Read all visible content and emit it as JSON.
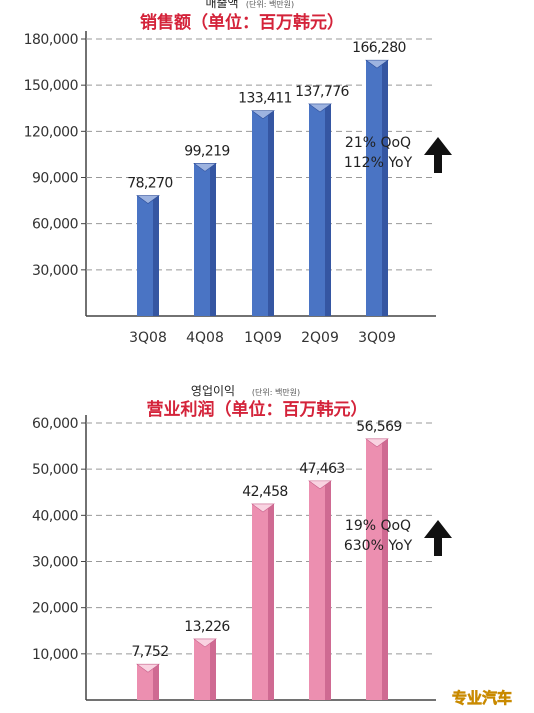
{
  "chart_data": [
    {
      "type": "bar",
      "title_ko": "매출액",
      "unit_ko": "(단위: 백만원)",
      "title_zh": "销售额（单位：百万韩元）",
      "categories": [
        "3Q08",
        "4Q08",
        "1Q09",
        "2Q09",
        "3Q09"
      ],
      "values": [
        78270,
        99219,
        133411,
        137776,
        166280
      ],
      "value_labels": [
        "78,270",
        "99,219",
        "133,411",
        "137,776",
        "166,280"
      ],
      "ylim": [
        0,
        180000
      ],
      "yticks": [
        "30,000",
        "60,000",
        "90,000",
        "120,000",
        "150,000",
        "180,000"
      ],
      "grid": true,
      "annotation": [
        "21% QoQ",
        "112% YoY"
      ],
      "colors": {
        "front": "#4a74c4",
        "side": "#2f4f9a",
        "top": "#9db3e0"
      }
    },
    {
      "type": "bar",
      "title_ko": "영업이익",
      "unit_ko": "(단위: 백만원)",
      "title_zh": "营业利润（单位：百万韩元）",
      "categories": [
        "3Q08",
        "4Q08",
        "1Q09",
        "2Q09",
        "3Q09"
      ],
      "values": [
        7752,
        13226,
        42458,
        47463,
        56569
      ],
      "value_labels": [
        "7,752",
        "13,226",
        "42,458",
        "47,463",
        "56,569"
      ],
      "ylim": [
        0,
        60000
      ],
      "yticks": [
        "10,000",
        "20,000",
        "30,000",
        "40,000",
        "50,000",
        "60,000"
      ],
      "grid": true,
      "annotation": [
        "19% QoQ",
        "630% YoY"
      ],
      "colors": {
        "front": "#ec8fb0",
        "side": "#c8608b",
        "top": "#f9d3e1"
      }
    }
  ],
  "watermark": "专业汽车"
}
